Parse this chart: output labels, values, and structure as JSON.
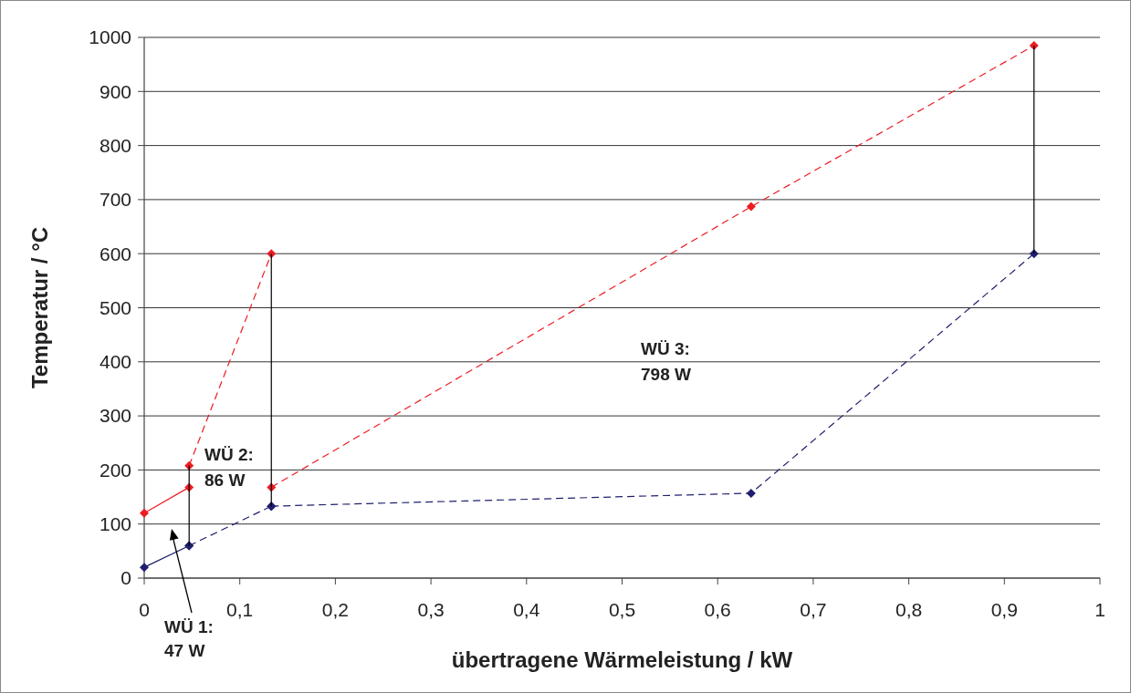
{
  "chart_data": {
    "type": "line",
    "xlabel": "übertragene Wärmeleistung / kW",
    "ylabel": "Temperatur / °C",
    "xlim": [
      0,
      1
    ],
    "xticks": [
      {
        "value": 0,
        "label": "0"
      },
      {
        "value": 0.1,
        "label": "0,1"
      },
      {
        "value": 0.2,
        "label": "0,2"
      },
      {
        "value": 0.3,
        "label": "0,3"
      },
      {
        "value": 0.4,
        "label": "0,4"
      },
      {
        "value": 0.5,
        "label": "0,5"
      },
      {
        "value": 0.6,
        "label": "0,6"
      },
      {
        "value": 0.7,
        "label": "0,7"
      },
      {
        "value": 0.8,
        "label": "0,8"
      },
      {
        "value": 0.9,
        "label": "0,9"
      },
      {
        "value": 1,
        "label": "1"
      }
    ],
    "ylim": [
      0,
      1000
    ],
    "yticks": [
      0,
      100,
      200,
      300,
      400,
      500,
      600,
      700,
      800,
      900,
      1000
    ],
    "grid": "y",
    "series": [
      {
        "color": "#ed1c24",
        "x": [
          0,
          0.047
        ],
        "values": [
          120,
          168
        ],
        "marker": "diamond",
        "line_style": "solid"
      },
      {
        "color": "#ed1c24",
        "x": [
          0.047,
          0.133
        ],
        "values": [
          208,
          600
        ],
        "marker": "diamond",
        "line_style": "dashed"
      },
      {
        "color": "#ed1c24",
        "x": [
          0.133,
          0.635,
          0.931
        ],
        "values": [
          168,
          687,
          985
        ],
        "marker": "diamond",
        "line_style": "dashed"
      },
      {
        "color": "#1f1f6e",
        "x": [
          0,
          0.047
        ],
        "values": [
          20,
          60
        ],
        "marker": "diamond",
        "line_style": "solid"
      },
      {
        "color": "#1f1f6e",
        "x": [
          0.047,
          0.133
        ],
        "values": [
          60,
          133
        ],
        "marker": "diamond",
        "line_style": "dashed"
      },
      {
        "color": "#1f1f6e",
        "x": [
          0.133,
          0.635,
          0.931
        ],
        "values": [
          133,
          157,
          600
        ],
        "marker": "diamond",
        "line_style": "dashed"
      },
      {
        "color": "#000000",
        "x": [
          0.047,
          0.047
        ],
        "values": [
          60,
          208
        ],
        "marker": "none",
        "line_style": "solid"
      },
      {
        "color": "#000000",
        "x": [
          0.133,
          0.133
        ],
        "values": [
          133,
          600
        ],
        "marker": "none",
        "line_style": "solid"
      },
      {
        "color": "#000000",
        "x": [
          0.931,
          0.931
        ],
        "values": [
          600,
          985
        ],
        "marker": "none",
        "line_style": "solid"
      }
    ],
    "annotations": [
      "WÜ 1:\n47 W",
      "WÜ 2:\n86 W",
      "WÜ 3:\n798 W"
    ]
  }
}
